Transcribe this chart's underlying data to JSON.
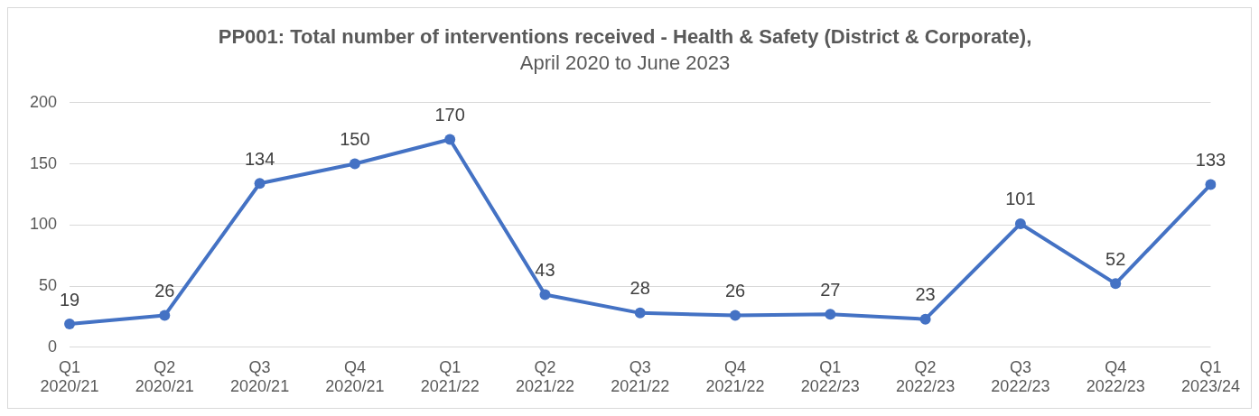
{
  "chart_data": {
    "type": "line",
    "title": "PP001: Total number of interventions received - Health & Safety (District & Corporate),",
    "subtitle": "April 2020 to June 2023",
    "categories": [
      "Q1 2020/21",
      "Q2 2020/21",
      "Q3 2020/21",
      "Q4 2020/21",
      "Q1 2021/22",
      "Q2 2021/22",
      "Q3 2021/22",
      "Q4 2021/22",
      "Q1 2022/23",
      "Q2 2022/23",
      "Q3 2022/23",
      "Q4 2022/23",
      "Q1 2023/24"
    ],
    "series": [
      {
        "color": "#4472c4",
        "values": [
          19,
          26,
          134,
          150,
          170,
          43,
          28,
          26,
          27,
          23,
          101,
          52,
          133
        ]
      }
    ],
    "ylim": [
      0,
      200
    ],
    "yticks": [
      0,
      50,
      100,
      150,
      200
    ],
    "grid": "y",
    "legend": false,
    "marker": "circle",
    "line_style": "solid",
    "data_labels": true
  }
}
